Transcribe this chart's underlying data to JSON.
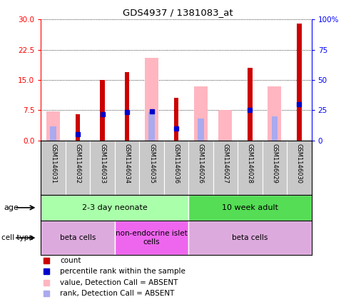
{
  "title": "GDS4937 / 1381083_at",
  "samples": [
    "GSM1146031",
    "GSM1146032",
    "GSM1146033",
    "GSM1146034",
    "GSM1146035",
    "GSM1146036",
    "GSM1146026",
    "GSM1146027",
    "GSM1146028",
    "GSM1146029",
    "GSM1146030"
  ],
  "count_values": [
    0,
    6.5,
    15.0,
    17.0,
    0,
    10.5,
    0,
    0,
    18.0,
    0,
    29.0
  ],
  "absent_value": [
    7.2,
    0,
    0,
    0,
    20.5,
    0,
    13.5,
    7.5,
    0,
    13.5,
    0
  ],
  "absent_rank": [
    3.5,
    0,
    0,
    0,
    7.0,
    0,
    5.5,
    0,
    0,
    6.0,
    0
  ],
  "has_blue_dot": [
    false,
    true,
    true,
    true,
    true,
    true,
    false,
    false,
    true,
    false,
    true
  ],
  "blue_dot_val": [
    0,
    1.5,
    6.5,
    7.0,
    7.2,
    3.0,
    0,
    0,
    7.5,
    0,
    9.0
  ],
  "ylim_left": [
    0,
    30
  ],
  "ylim_right": [
    0,
    100
  ],
  "yticks_left": [
    0,
    7.5,
    15,
    22.5,
    30
  ],
  "yticks_right": [
    0,
    25,
    50,
    75,
    100
  ],
  "ytick_labels_right": [
    "0",
    "25",
    "50",
    "75",
    "100%"
  ],
  "bar_width": 0.55,
  "dark_red": "#CC0000",
  "light_pink": "#FFB6C1",
  "blue_color": "#0000CC",
  "light_blue": "#AAAAEE",
  "bg_color": "#C8C8C8",
  "age_group_spans": [
    [
      0,
      6,
      "2-3 day neonate",
      "#AAFFAA"
    ],
    [
      6,
      11,
      "10 week adult",
      "#55DD55"
    ]
  ],
  "cell_group_spans": [
    [
      0,
      3,
      "beta cells",
      "#DDAADD"
    ],
    [
      3,
      6,
      "non-endocrine islet\ncells",
      "#EE66EE"
    ],
    [
      6,
      11,
      "beta cells",
      "#DDAADD"
    ]
  ],
  "legend_items": [
    [
      "#CC0000",
      "count"
    ],
    [
      "#0000CC",
      "percentile rank within the sample"
    ],
    [
      "#FFB6C1",
      "value, Detection Call = ABSENT"
    ],
    [
      "#AAAAEE",
      "rank, Detection Call = ABSENT"
    ]
  ]
}
